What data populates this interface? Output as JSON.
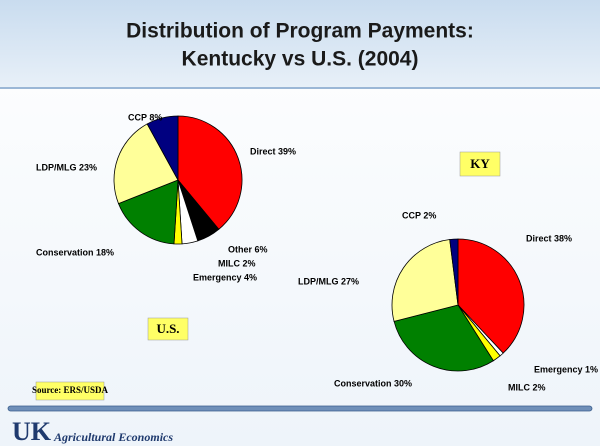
{
  "title_lines": [
    "Distribution of Program Payments:",
    "Kentucky vs U.S. (2004)"
  ],
  "source": "Source:  ERS/USDA",
  "footer": {
    "logo": "UK",
    "text": "Agricultural Economics"
  },
  "chart_data": [
    {
      "type": "pie",
      "title": "U.S.",
      "values": [
        39,
        6,
        4,
        2,
        18,
        23,
        8
      ],
      "value_labels": [
        "Direct 39%",
        "Other 6%",
        "Emergency 4%",
        "MILC 2%",
        "Conservation 18%",
        "LDP/MLG 23%",
        "CCP 8%"
      ],
      "colors": [
        "#ff0000",
        "#000000",
        "#ffffff",
        "#ffff00",
        "#008000",
        "#ffff99",
        "#000080"
      ]
    },
    {
      "type": "pie",
      "title": "KY",
      "values": [
        38,
        1,
        2,
        30,
        27,
        2
      ],
      "value_labels": [
        "Direct 38%",
        "Emergency 1%",
        "MILC 2%",
        "Conservation 30%",
        "LDP/MLG 27%",
        "CCP 2%"
      ],
      "colors": [
        "#ff0000",
        "#ffffff",
        "#ffff00",
        "#008000",
        "#ffff99",
        "#000080"
      ]
    }
  ]
}
